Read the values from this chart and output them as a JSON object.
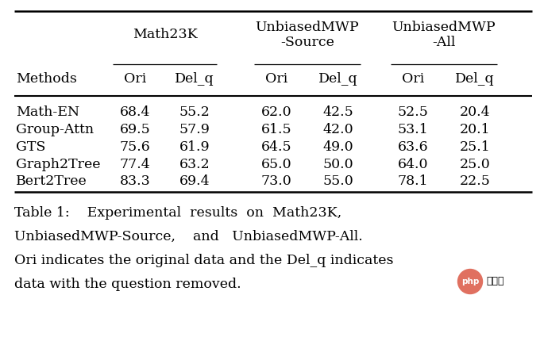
{
  "group_labels": [
    "Math23K",
    "UnbiasedMWP\n-Source",
    "UnbiasedMWP\n-All"
  ],
  "row_header": "Methods",
  "col_headers": [
    "Ori",
    "Del_q",
    "Ori",
    "Del_q",
    "Ori",
    "Del_q"
  ],
  "methods": [
    "Math-EN",
    "Group-Attn",
    "GTS",
    "Graph2Tree",
    "Bert2Tree"
  ],
  "data": [
    [
      68.4,
      55.2,
      62.0,
      42.5,
      52.5,
      20.4
    ],
    [
      69.5,
      57.9,
      61.5,
      42.0,
      53.1,
      20.1
    ],
    [
      75.6,
      61.9,
      64.5,
      49.0,
      63.6,
      25.1
    ],
    [
      77.4,
      63.2,
      65.0,
      50.0,
      64.0,
      25.0
    ],
    [
      83.3,
      69.4,
      73.0,
      55.0,
      78.1,
      22.5
    ]
  ],
  "caption_lines": [
    "Table 1:    Experimental  results  on  Math23K,",
    "UnbiasedMWP-Source,    and   UnbiasedMWP-All.",
    "Ori indicates the original data and the Del_q indicates",
    "data with the question removed."
  ],
  "bg_color": "#ffffff",
  "text_color": "#000000",
  "font_size": 12.5,
  "caption_font_size": 12.5,
  "logo_circle_color": "#e07060",
  "logo_text": "php",
  "logo_label": "中文网"
}
